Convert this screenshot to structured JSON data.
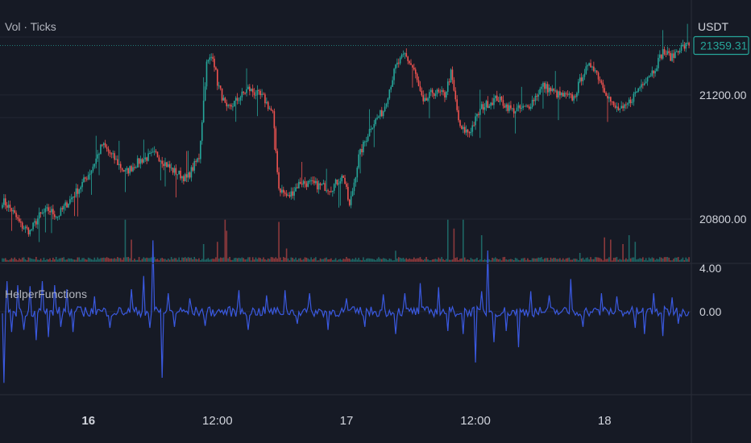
{
  "chart_data": [
    {
      "type": "candlestick",
      "title": "Vol · Ticks",
      "currency": "USDT",
      "last_price": "21359.31",
      "y_ticks": [
        "21200.00",
        "20800.00"
      ],
      "y_tick_values": [
        21200,
        20800
      ],
      "ylim": [
        20660,
        21480
      ],
      "colors": {
        "up": "#26a69a",
        "down": "#ef5350",
        "background": "#161a25",
        "grid": "#232733",
        "text": "#b2b5be",
        "last_price": "#26a69a"
      },
      "close_anchors": [
        [
          0,
          20860
        ],
        [
          6,
          20830
        ],
        [
          12,
          20780
        ],
        [
          18,
          20760
        ],
        [
          24,
          20810
        ],
        [
          30,
          20830
        ],
        [
          36,
          20810
        ],
        [
          42,
          20850
        ],
        [
          50,
          20900
        ],
        [
          58,
          20960
        ],
        [
          65,
          21040
        ],
        [
          72,
          21000
        ],
        [
          80,
          20950
        ],
        [
          90,
          20990
        ],
        [
          100,
          21010
        ],
        [
          110,
          20960
        ],
        [
          120,
          20930
        ],
        [
          128,
          21000
        ],
        [
          133,
          21300
        ],
        [
          137,
          21330
        ],
        [
          140,
          21240
        ],
        [
          146,
          21150
        ],
        [
          152,
          21180
        ],
        [
          160,
          21220
        ],
        [
          170,
          21190
        ],
        [
          176,
          21140
        ],
        [
          180,
          20900
        ],
        [
          186,
          20870
        ],
        [
          194,
          20920
        ],
        [
          204,
          20910
        ],
        [
          214,
          20900
        ],
        [
          222,
          20940
        ],
        [
          226,
          20840
        ],
        [
          232,
          21000
        ],
        [
          240,
          21100
        ],
        [
          248,
          21150
        ],
        [
          256,
          21290
        ],
        [
          262,
          21330
        ],
        [
          268,
          21280
        ],
        [
          274,
          21170
        ],
        [
          280,
          21210
        ],
        [
          288,
          21200
        ],
        [
          292,
          21270
        ],
        [
          298,
          21090
        ],
        [
          304,
          21080
        ],
        [
          312,
          21160
        ],
        [
          322,
          21190
        ],
        [
          332,
          21150
        ],
        [
          342,
          21160
        ],
        [
          352,
          21230
        ],
        [
          362,
          21200
        ],
        [
          372,
          21190
        ],
        [
          378,
          21270
        ],
        [
          384,
          21300
        ],
        [
          392,
          21220
        ],
        [
          398,
          21160
        ],
        [
          404,
          21150
        ],
        [
          410,
          21190
        ],
        [
          418,
          21250
        ],
        [
          424,
          21280
        ],
        [
          430,
          21340
        ],
        [
          436,
          21320
        ],
        [
          440,
          21350
        ],
        [
          446,
          21359.31
        ]
      ],
      "volume_spikes": [
        [
          80,
          0.95
        ],
        [
          84,
          0.5
        ],
        [
          131,
          0.4
        ],
        [
          140,
          0.45
        ],
        [
          145,
          0.95
        ],
        [
          146,
          0.7
        ],
        [
          180,
          0.9
        ],
        [
          185,
          0.3
        ],
        [
          256,
          0.25
        ],
        [
          290,
          0.95
        ],
        [
          294,
          0.75
        ],
        [
          300,
          0.95
        ],
        [
          312,
          0.6
        ],
        [
          376,
          0.2
        ],
        [
          392,
          0.55
        ],
        [
          396,
          0.5
        ],
        [
          404,
          0.4
        ],
        [
          408,
          0.6
        ],
        [
          412,
          0.45
        ]
      ]
    },
    {
      "type": "line",
      "title": "HelperFunctions",
      "y_ticks": [
        "4.00",
        "0.00"
      ],
      "y_tick_values": [
        4,
        0
      ],
      "ylim": [
        -8,
        4.5
      ],
      "line_color": "#3a59e0",
      "series_spikes": [
        [
          1,
          -7
        ],
        [
          3,
          3
        ],
        [
          6,
          -2
        ],
        [
          10,
          2.6
        ],
        [
          14,
          -1.8
        ],
        [
          18,
          2.5
        ],
        [
          22,
          -2.8
        ],
        [
          26,
          3
        ],
        [
          30,
          -2.5
        ],
        [
          34,
          2.6
        ],
        [
          38,
          -1.5
        ],
        [
          42,
          2.2
        ],
        [
          46,
          -2
        ],
        [
          60,
          1.5
        ],
        [
          70,
          -1.6
        ],
        [
          84,
          2.2
        ],
        [
          92,
          3.5
        ],
        [
          96,
          -1.6
        ],
        [
          98,
          7
        ],
        [
          104,
          -6.5
        ],
        [
          108,
          1.8
        ],
        [
          112,
          -1.5
        ],
        [
          122,
          1.3
        ],
        [
          132,
          -1.4
        ],
        [
          154,
          2.1
        ],
        [
          160,
          -1.8
        ],
        [
          172,
          1.6
        ],
        [
          184,
          2.1
        ],
        [
          192,
          -1.2
        ],
        [
          200,
          1.8
        ],
        [
          212,
          -1.8
        ],
        [
          224,
          1.3
        ],
        [
          236,
          -1.5
        ],
        [
          248,
          1.7
        ],
        [
          256,
          -2.2
        ],
        [
          262,
          1.8
        ],
        [
          272,
          2.8
        ],
        [
          284,
          2.4
        ],
        [
          290,
          -1.9
        ],
        [
          300,
          -2.2
        ],
        [
          308,
          -5
        ],
        [
          312,
          2
        ],
        [
          316,
          6
        ],
        [
          320,
          -3
        ],
        [
          328,
          -1.9
        ],
        [
          336,
          -3.5
        ],
        [
          344,
          2
        ],
        [
          356,
          1.6
        ],
        [
          370,
          3.2
        ],
        [
          378,
          -1.5
        ],
        [
          390,
          1.8
        ],
        [
          400,
          1.5
        ],
        [
          412,
          -1.6
        ],
        [
          418,
          -2.2
        ],
        [
          424,
          1.8
        ],
        [
          430,
          -2.4
        ],
        [
          436,
          1.4
        ],
        [
          440,
          -1.2
        ]
      ]
    }
  ],
  "time_axis": {
    "labels": [
      "16",
      "12:00",
      "17",
      "12:00",
      "18"
    ],
    "bold": [
      true,
      false,
      false,
      false,
      false
    ],
    "label_bar_index": [
      56,
      140,
      224,
      308,
      392
    ]
  },
  "bar_count": 448
}
